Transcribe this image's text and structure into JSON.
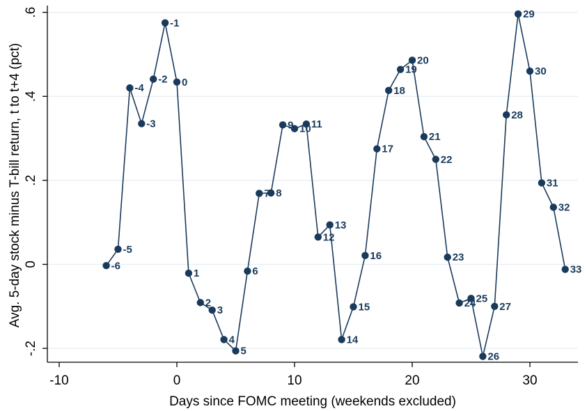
{
  "chart_data": {
    "type": "line",
    "title": "",
    "xlabel": "Days since FOMC meeting (weekends excluded)",
    "ylabel": "Avg. 5-day stock minus T-bill return, t to t+4 (pct)",
    "xlim": [
      -10,
      33
    ],
    "ylim": [
      -0.2,
      0.6
    ],
    "x_ticks": [
      -10,
      0,
      10,
      20,
      30
    ],
    "x_tick_labels": [
      "-10",
      "0",
      "10",
      "20",
      "30"
    ],
    "y_ticks": [
      -0.2,
      0,
      0.2,
      0.4,
      0.6
    ],
    "y_tick_labels": [
      "-.2",
      "0",
      ".2",
      ".4",
      ".6"
    ],
    "grid": true,
    "series": [
      {
        "color": "#1a3a5c",
        "points": [
          {
            "x": -6,
            "y": -0.003,
            "label": "-6"
          },
          {
            "x": -5,
            "y": 0.036,
            "label": "-5"
          },
          {
            "x": -4,
            "y": 0.42,
            "label": "-4"
          },
          {
            "x": -3,
            "y": 0.335,
            "label": "-3"
          },
          {
            "x": -2,
            "y": 0.441,
            "label": "-2"
          },
          {
            "x": -1,
            "y": 0.575,
            "label": "-1"
          },
          {
            "x": 0,
            "y": 0.434,
            "label": "0"
          },
          {
            "x": 1,
            "y": -0.021,
            "label": "1"
          },
          {
            "x": 2,
            "y": -0.091,
            "label": "2"
          },
          {
            "x": 3,
            "y": -0.109,
            "label": "3"
          },
          {
            "x": 4,
            "y": -0.179,
            "label": "4"
          },
          {
            "x": 5,
            "y": -0.206,
            "label": "5"
          },
          {
            "x": 6,
            "y": -0.016,
            "label": "6"
          },
          {
            "x": 7,
            "y": 0.169,
            "label": "7"
          },
          {
            "x": 8,
            "y": 0.17,
            "label": "8"
          },
          {
            "x": 9,
            "y": 0.332,
            "label": "9"
          },
          {
            "x": 10,
            "y": 0.323,
            "label": "10"
          },
          {
            "x": 11,
            "y": 0.334,
            "label": "11"
          },
          {
            "x": 12,
            "y": 0.065,
            "label": "12"
          },
          {
            "x": 13,
            "y": 0.094,
            "label": "13"
          },
          {
            "x": 14,
            "y": -0.179,
            "label": "14"
          },
          {
            "x": 15,
            "y": -0.101,
            "label": "15"
          },
          {
            "x": 16,
            "y": 0.021,
            "label": "16"
          },
          {
            "x": 17,
            "y": 0.275,
            "label": "17"
          },
          {
            "x": 18,
            "y": 0.414,
            "label": "18"
          },
          {
            "x": 19,
            "y": 0.464,
            "label": "19"
          },
          {
            "x": 20,
            "y": 0.486,
            "label": "20"
          },
          {
            "x": 21,
            "y": 0.304,
            "label": "21"
          },
          {
            "x": 22,
            "y": 0.25,
            "label": "22"
          },
          {
            "x": 23,
            "y": 0.017,
            "label": "23"
          },
          {
            "x": 24,
            "y": -0.092,
            "label": "24"
          },
          {
            "x": 25,
            "y": -0.081,
            "label": "25"
          },
          {
            "x": 26,
            "y": -0.219,
            "label": "26"
          },
          {
            "x": 27,
            "y": -0.1,
            "label": "27"
          },
          {
            "x": 28,
            "y": 0.356,
            "label": "28"
          },
          {
            "x": 29,
            "y": 0.596,
            "label": "29"
          },
          {
            "x": 30,
            "y": 0.46,
            "label": "30"
          },
          {
            "x": 31,
            "y": 0.194,
            "label": "31"
          },
          {
            "x": 32,
            "y": 0.136,
            "label": "32"
          },
          {
            "x": 33,
            "y": -0.012,
            "label": "33"
          }
        ]
      }
    ]
  }
}
